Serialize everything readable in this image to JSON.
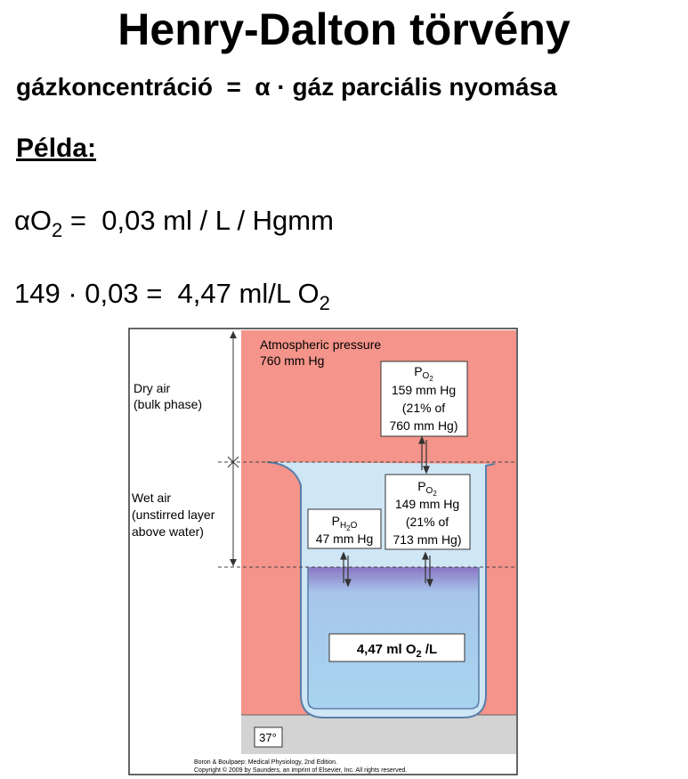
{
  "title": "Henry-Dalton törvény",
  "formula": "gázkoncentráció  =  α · gáz parciális nyomása",
  "example_heading": "Példa:",
  "alpha_line": {
    "prefix": "αO",
    "sub": "2",
    "suffix": " =  0,03 ml / L / Hgmm"
  },
  "calc_line": {
    "text": "149 · 0,03 =  4,47 ml/L O",
    "sub": "2"
  },
  "figure": {
    "atmospheric_label": [
      "Atmospheric pressure",
      "760 mm Hg"
    ],
    "dry_air_label": [
      "Dry air",
      "(bulk phase)"
    ],
    "wet_air_label": [
      "Wet air",
      "(unstirred layer",
      "above water)"
    ],
    "po2_top": {
      "symbol": "P",
      "subscript": "O",
      "subsub": "2",
      "lines": [
        "159 mm Hg",
        "(21% of",
        "760 mm Hg)"
      ]
    },
    "ph2o": {
      "symbol": "P",
      "subscript": "H",
      "subsub": "2",
      "subscript_tail": "O",
      "lines": [
        "47 mm Hg"
      ]
    },
    "po2_wet": {
      "symbol": "P",
      "subscript": "O",
      "subsub": "2",
      "lines": [
        "149 mm Hg",
        "(21% of",
        "713 mm Hg)"
      ]
    },
    "concentration": {
      "prefix": "4,47 ml O",
      "sub": "2",
      "suffix": " /L"
    },
    "temperature": "37°",
    "credit_1": "Boron & Boulpaep: Medical Physiology, 2nd Edition.",
    "credit_2": "Copyright © 2009 by Saunders, an imprint of Elsevier, Inc. All rights reserved.",
    "colors": {
      "air": "#f4948a",
      "water_top": "#8a74c4",
      "water": "#a8d4ef",
      "base": "#cfcfcf"
    }
  }
}
